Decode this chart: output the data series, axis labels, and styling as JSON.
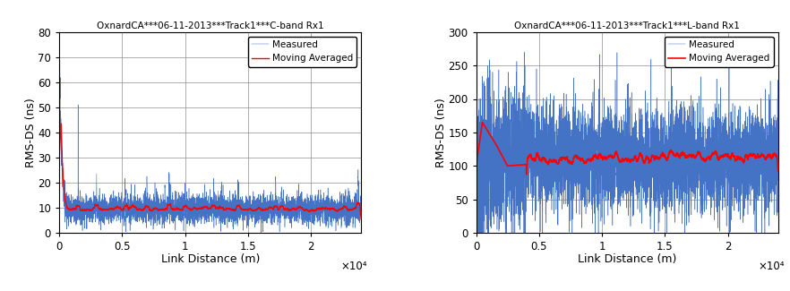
{
  "left": {
    "title": "OxnardCA***06-11-2013***Track1***C-band Rx1",
    "xlabel": "Link Distance (m)",
    "ylabel": "RMS-DS (ns)",
    "xlim": [
      0,
      24000
    ],
    "ylim": [
      0,
      80
    ],
    "yticks": [
      0,
      10,
      20,
      30,
      40,
      50,
      60,
      70,
      80
    ],
    "xticks": [
      0,
      5000,
      10000,
      15000,
      20000
    ],
    "xticklabels": [
      "0",
      "0.5",
      "1",
      "1.5",
      "2"
    ],
    "x_exp_label": "×10⁴",
    "measured_color": "#4472C4",
    "averaged_color": "#FF0000"
  },
  "right": {
    "title": "OxnardCA***06-11-2013***Track1***L-band Rx1",
    "xlabel": "Link Distance (m)",
    "ylabel": "RMS-DS (ns)",
    "xlim": [
      0,
      24000
    ],
    "ylim": [
      0,
      300
    ],
    "yticks": [
      0,
      50,
      100,
      150,
      200,
      250,
      300
    ],
    "xticks": [
      0,
      5000,
      10000,
      15000,
      20000
    ],
    "xticklabels": [
      "0",
      "0.5",
      "1",
      "1.5",
      "2"
    ],
    "x_exp_label": "×10⁴",
    "measured_color": "#4472C4",
    "averaged_color": "#FF0000"
  },
  "legend_labels": [
    "Measured",
    "Moving Averaged"
  ],
  "figsize": [
    8.82,
    3.25
  ],
  "dpi": 100
}
